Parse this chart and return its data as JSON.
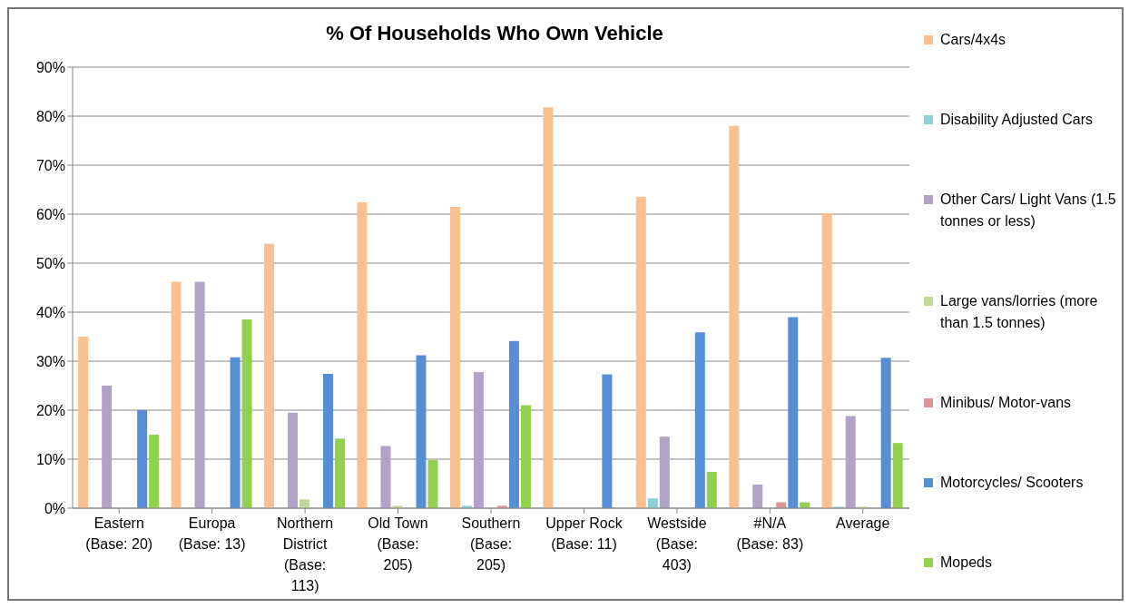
{
  "chart_data": {
    "type": "bar",
    "title": "% Of Households Who Own Vehicle",
    "categories": [
      "Eastern (Base: 20)",
      "Europa (Base: 13)",
      "Northern District (Base: 113)",
      "Old Town (Base: 205)",
      "Southern (Base: 205)",
      "Upper Rock (Base: 11)",
      "Westside (Base: 403)",
      "#N/A (Base: 83)",
      "Average"
    ],
    "series": [
      {
        "name": "Cars/4x4s",
        "color": "#fac090",
        "values": [
          35,
          46.2,
          54,
          62.4,
          61.5,
          81.8,
          63.5,
          78,
          60.2
        ]
      },
      {
        "name": "Disability Adjusted Cars",
        "color": "#92cddc",
        "values": [
          0,
          0,
          0,
          0,
          0.5,
          0,
          2,
          0,
          0.3
        ]
      },
      {
        "name": "Other Cars/ Light Vans (1.5 tonnes or less)",
        "color": "#b3a2c7",
        "values": [
          25,
          46.2,
          19.5,
          12.7,
          27.8,
          0,
          14.6,
          4.8,
          18.8
        ]
      },
      {
        "name": "Large vans/lorries (more than 1.5 tonnes)",
        "color": "#c3d69b",
        "values": [
          0,
          0,
          1.8,
          0.5,
          0,
          0,
          0,
          0,
          0.3
        ]
      },
      {
        "name": "Minibus/ Motor-vans",
        "color": "#d99694",
        "values": [
          0,
          0,
          0,
          0,
          0.5,
          0,
          0,
          1.2,
          null
        ]
      },
      {
        "name": "Motorcycles/ Scooters",
        "color": "#558ed5",
        "values": [
          20,
          30.8,
          27.4,
          31.2,
          34.1,
          27.3,
          35.9,
          39,
          30.7
        ]
      },
      {
        "name": "Mopeds",
        "color": "#92d050",
        "values": [
          15,
          38.5,
          14.2,
          9.8,
          21,
          0,
          7.4,
          1.2,
          13.3
        ]
      }
    ],
    "ylim": [
      0,
      90
    ],
    "yticks": [
      {
        "value": 0,
        "label": "0%"
      },
      {
        "value": 10,
        "label": "10%"
      },
      {
        "value": 20,
        "label": "20%"
      },
      {
        "value": 30,
        "label": "30%"
      },
      {
        "value": 40,
        "label": "40%"
      },
      {
        "value": 50,
        "label": "50%"
      },
      {
        "value": 60,
        "label": "60%"
      },
      {
        "value": 70,
        "label": "70%"
      },
      {
        "value": 80,
        "label": "80%"
      },
      {
        "value": 90,
        "label": "90%"
      }
    ],
    "grid": "y",
    "legend": "right"
  }
}
